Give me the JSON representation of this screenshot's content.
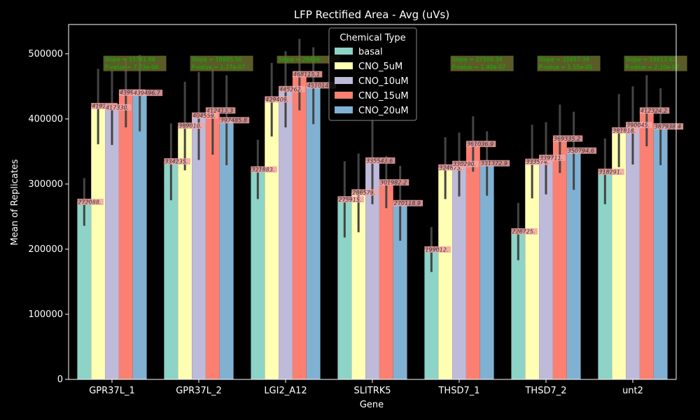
{
  "chart_data": {
    "type": "bar",
    "title": "LFP Rectified Area - Avg (uVs)",
    "xlabel": "Gene",
    "ylabel": "Mean of Replicates",
    "ylim": [
      0,
      545000
    ],
    "yticks": [
      0,
      100000,
      200000,
      300000,
      400000,
      500000
    ],
    "grid": false,
    "legend_position": "upper-center",
    "legend_title": "Chemical Type",
    "categories": [
      "GPR37L_1",
      "GPR37L_2",
      "LGI2_A12",
      "SLITRK5",
      "THSD7_1",
      "THSD7_2",
      "unt2"
    ],
    "series": [
      {
        "name": "basal",
        "color": "#8dd3c7",
        "values": [
          272088,
          334235,
          321883,
          275915,
          199012,
          226725,
          318291
        ],
        "labels": [
          "272088.",
          "334235.",
          "321883.",
          "275915.",
          "199012.",
          "226725.",
          "318291."
        ],
        "err_low": [
          236000,
          275000,
          277000,
          218000,
          165000,
          183000,
          269000
        ],
        "err_high": [
          309000,
          393000,
          368000,
          335000,
          234000,
          271000,
          370000
        ]
      },
      {
        "name": "CNO_5uM",
        "color": "#ffffb3",
        "values": [
          419206,
          389010,
          429409,
          286579,
          324875,
          333574,
          381818
        ],
        "labels": [
          "419206.",
          "389010.",
          "429409.",
          "286579.",
          "324875.",
          "333574.",
          "381818."
        ],
        "err_low": [
          361000,
          321000,
          373000,
          226000,
          277000,
          278000,
          326000
        ],
        "err_high": [
          477000,
          457000,
          486000,
          347000,
          372000,
          391000,
          438000
        ]
      },
      {
        "name": "CNO_10uM",
        "color": "#bebada",
        "values": [
          417330,
          404559,
          445262,
          335543.6,
          330290,
          339711,
          390045
        ],
        "labels": [
          "417330.",
          "404559.",
          "445262.",
          "335543.6",
          "330290.",
          "339711.",
          "390045."
        ],
        "err_low": [
          360000,
          337000,
          387000,
          269000,
          281000,
          284000,
          330000
        ],
        "err_high": [
          474000,
          472000,
          504000,
          402000,
          379000,
          395000,
          450000
        ]
      },
      {
        "name": "CNO_15uM",
        "color": "#fb8072",
        "values": [
          439980,
          412413,
          468115.1,
          301982.2,
          361036.9,
          369335.2,
          412324.2
        ],
        "labels": [
          "439980.",
          "412413.3",
          "468115.1",
          "301982.2",
          "361036.9",
          "369335.2",
          "412324.2"
        ],
        "err_low": [
          387000,
          345000,
          413000,
          263000,
          319000,
          317000,
          358000
        ],
        "err_high": [
          493000,
          478000,
          523000,
          343000,
          404000,
          422000,
          467000
        ]
      },
      {
        "name": "CNO_20uM",
        "color": "#80b1d3",
        "values": [
          439496.7,
          397485.8,
          451014.6,
          270118.9,
          331372.9,
          350794.6,
          387938.4
        ],
        "labels": [
          "439496.7",
          "397485.8",
          "451014.6",
          "270118.9",
          "331372.9",
          "350794.6",
          "387938.4"
        ],
        "err_low": [
          381000,
          329000,
          392000,
          213000,
          282000,
          291000,
          329000
        ],
        "err_high": [
          498000,
          467000,
          510000,
          328000,
          381000,
          411000,
          447000
        ]
      }
    ],
    "stat_annotations": [
      {
        "category": "GPR37L_1",
        "line1": "Slope = 33781.88",
        "line2": "P-value = 7.73e-06"
      },
      {
        "category": "GPR37L_2",
        "line1": "Slope = 18885.50",
        "line2": "P-value = 1.27e-07"
      },
      {
        "category": "LGI2_A12",
        "line1": "Slope = 29456.",
        "line2": ""
      },
      {
        "category": "SLITRK5",
        "line1": "",
        "line2": ""
      },
      {
        "category": "THSD7_1",
        "line1": "Slope = 27500.34",
        "line2": "P-value = 1.40e-07"
      },
      {
        "category": "THSD7_2",
        "line1": "Slope = 31657.34",
        "line2": "P-value = 1.55e-05"
      },
      {
        "category": "unt2",
        "line1": "Slope = 19813.62",
        "line2": "P-value = 2.10e-07"
      }
    ]
  }
}
